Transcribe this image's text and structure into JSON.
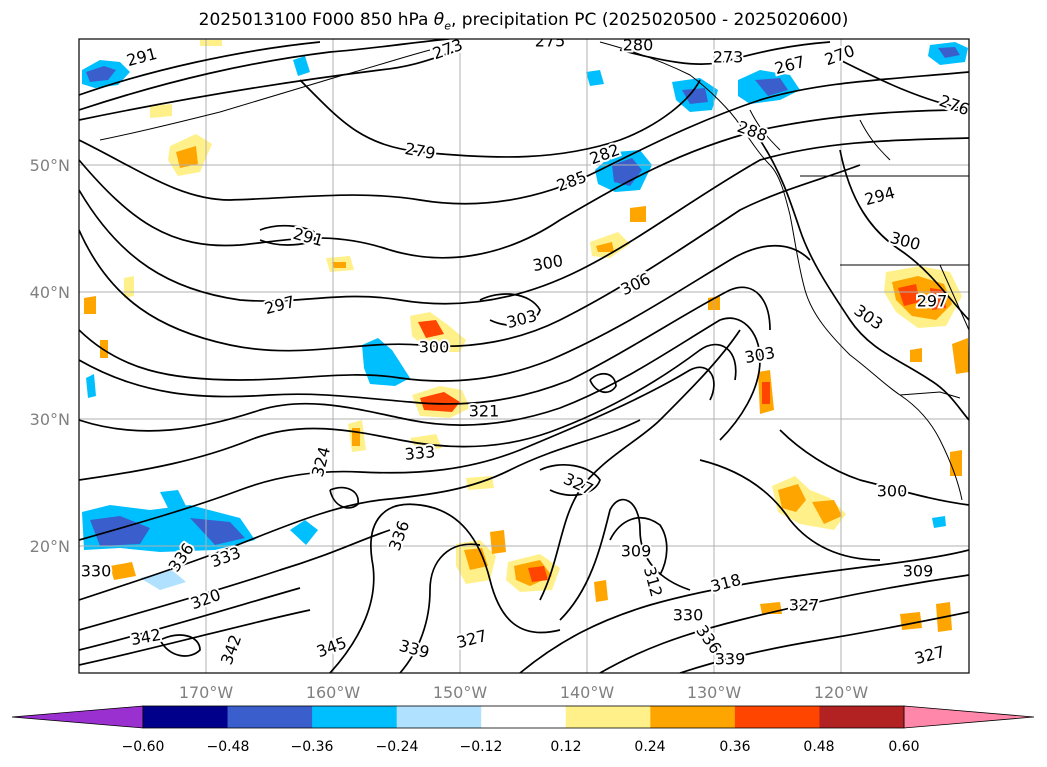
{
  "title": {
    "prefix": "2025013100 F000 850 hPa ",
    "theta": "θ",
    "sub": "e",
    "suffix": ", precipitation PC (2025020500 - 2025020600)"
  },
  "map": {
    "lon_ticks": [
      "170°W",
      "160°W",
      "150°W",
      "140°W",
      "130°W",
      "120°W"
    ],
    "lat_ticks": [
      "50°N",
      "40°N",
      "30°N",
      "20°N"
    ],
    "grid": true
  },
  "contour_labels": [
    "291",
    "273",
    "275",
    "280",
    "273",
    "267",
    "270",
    "276",
    "288",
    "279",
    "282",
    "285",
    "294",
    "291",
    "300",
    "300",
    "297",
    "297",
    "306",
    "303",
    "300",
    "303",
    "303",
    "321",
    "324",
    "333",
    "327",
    "300",
    "336",
    "330",
    "333",
    "336",
    "309",
    "312",
    "318",
    "309",
    "330",
    "327",
    "320",
    "342",
    "342",
    "345",
    "339",
    "327",
    "336",
    "339",
    "327"
  ],
  "colorbar": {
    "ticks": [
      "−0.60",
      "−0.48",
      "−0.36",
      "−0.24",
      "−0.12",
      "0.12",
      "0.24",
      "0.36",
      "0.48",
      "0.60"
    ],
    "colors": [
      "#9b30d0",
      "#00008b",
      "#3a5fcd",
      "#00bfff",
      "#b0e2ff",
      "#ffffff",
      "#fff08a",
      "#ffa500",
      "#ff4500",
      "#b22222",
      "#ff88aa"
    ]
  }
}
